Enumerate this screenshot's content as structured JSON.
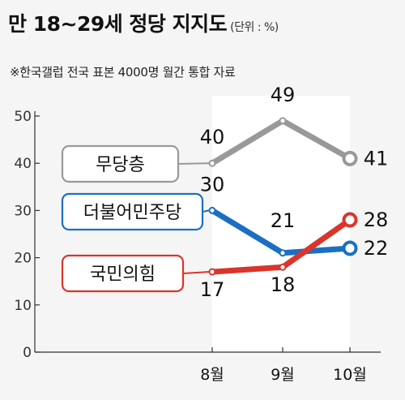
{
  "title": "만 18~29세 정당 지지도",
  "unit": "(단위 : %)",
  "subtitle": "※한국갤럽 전국 표본 4000명 월간 통합 자료",
  "colors": {
    "무당층": "#999999",
    "더불어민주당": "#1a6fc4",
    "국민의힘": "#d9352b"
  },
  "chart_data": {
    "type": "line",
    "categories": [
      "8월",
      "9월",
      "10월"
    ],
    "series": [
      {
        "name": "무당층",
        "values": [
          40,
          49,
          41
        ]
      },
      {
        "name": "더불어민주당",
        "values": [
          30,
          21,
          22
        ]
      },
      {
        "name": "국민의힘",
        "values": [
          17,
          18,
          28
        ]
      }
    ],
    "ylim": [
      0,
      50
    ],
    "yticks": [
      "0",
      "10",
      "20",
      "30",
      "40",
      "50"
    ],
    "grid": false
  }
}
